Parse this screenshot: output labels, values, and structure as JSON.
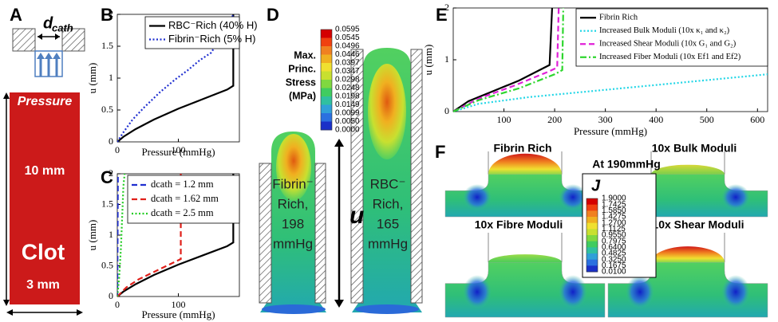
{
  "chart_data": [
    {
      "type": "line",
      "panel_label": "B",
      "xlabel": "Pressure (mmHg)",
      "ylabel": "u (mm)",
      "xlim": [
        0,
        200
      ],
      "ylim": [
        0,
        2
      ],
      "xticks": [
        0,
        100
      ],
      "yticks": [
        0,
        0.5,
        1,
        1.5,
        2
      ],
      "legend": "upper right",
      "series": [
        {
          "name": "RBC⁻Rich (40% H)",
          "color": "#000000",
          "style": "solid",
          "x": [
            0,
            10,
            30,
            60,
            100,
            140,
            180,
            190,
            190
          ],
          "values": [
            0,
            0.08,
            0.2,
            0.35,
            0.52,
            0.67,
            0.82,
            0.88,
            2
          ]
        },
        {
          "name": "Fibrin⁻Rich (5% H)",
          "color": "#1f2fd0",
          "style": "dotted",
          "x": [
            0,
            10,
            25,
            45,
            70,
            95,
            115,
            135,
            154,
            188,
            190
          ],
          "values": [
            0,
            0.15,
            0.35,
            0.55,
            0.78,
            0.98,
            1.12,
            1.28,
            1.4,
            1.95,
            2
          ]
        }
      ]
    },
    {
      "type": "line",
      "panel_label": "C",
      "xlabel": "Pressure (mmHg)",
      "ylabel": "u (mm)",
      "xlim": [
        0,
        200
      ],
      "ylim": [
        0,
        2
      ],
      "xticks": [
        0,
        100
      ],
      "yticks": [
        0,
        0.5,
        1,
        1.5,
        2
      ],
      "legend": "upper right",
      "series": [
        {
          "color": "#000000",
          "style": "solid",
          "x": [
            0,
            10,
            30,
            60,
            100,
            140,
            180,
            190,
            190
          ],
          "values": [
            0,
            0.08,
            0.2,
            0.35,
            0.52,
            0.67,
            0.82,
            0.88,
            2
          ]
        },
        {
          "name": "dcath = 1.2 mm",
          "color": "#1f2fd0",
          "style": "dashed",
          "x": [
            0,
            0.5,
            1
          ],
          "values": [
            0,
            1,
            2
          ]
        },
        {
          "name": "dcath = 1.62 mm",
          "color": "#e0201a",
          "style": "dashed",
          "x": [
            0,
            15,
            35,
            60,
            85,
            104,
            104,
            104
          ],
          "values": [
            0,
            0.15,
            0.28,
            0.4,
            0.52,
            0.61,
            1.35,
            2
          ]
        },
        {
          "name": "dcath = 2.5 mm",
          "color": "#22cc22",
          "style": "dotted",
          "x": [
            0,
            3,
            6,
            8,
            10,
            12
          ],
          "values": [
            0,
            0.3,
            0.8,
            1.3,
            1.8,
            2
          ]
        }
      ]
    },
    {
      "type": "line",
      "panel_label": "E",
      "xlabel": "Pressure (mmHg)",
      "ylabel": "u (mm)",
      "xlim": [
        0,
        620
      ],
      "ylim": [
        0,
        2
      ],
      "xticks": [
        100,
        200,
        300,
        400,
        500,
        600
      ],
      "yticks": [
        0,
        1,
        2
      ],
      "legend": "upper right",
      "series": [
        {
          "name": "Fibrin Rich",
          "color": "#000000",
          "style": "solid",
          "x": [
            0,
            30,
            80,
            130,
            170,
            190,
            195
          ],
          "values": [
            0,
            0.2,
            0.4,
            0.6,
            0.8,
            0.9,
            2
          ]
        },
        {
          "name": "Increased Bulk Moduli (10x κ₁ and κ₂)",
          "color": "#22d6e6",
          "style": "dotted",
          "x": [
            0,
            50,
            150,
            300,
            450,
            620
          ],
          "values": [
            0,
            0.15,
            0.28,
            0.42,
            0.56,
            0.72
          ]
        },
        {
          "name": "Increased Shear Moduli (10x G₁ and G₂)",
          "color": "#e020d8",
          "style": "dashed",
          "x": [
            0,
            50,
            120,
            190,
            205,
            208
          ],
          "values": [
            0,
            0.25,
            0.5,
            0.78,
            0.85,
            2
          ]
        },
        {
          "name": "Increased Fiber Moduli (10x Ef1 and Ef2)",
          "color": "#2ed62e",
          "style": "dashdot",
          "x": [
            0,
            50,
            130,
            200,
            215,
            217
          ],
          "values": [
            0,
            0.22,
            0.45,
            0.72,
            0.8,
            2
          ]
        }
      ]
    }
  ],
  "panel_a": {
    "label": "A",
    "catheter": {
      "symbol": "d",
      "subscript": "cath"
    },
    "pressure": "Pressure",
    "length": "10 mm",
    "clot": "Clot",
    "width": "3 mm"
  },
  "panel_d": {
    "label": "D",
    "colorbar": {
      "title": [
        "Max.",
        "Princ.",
        "Stress",
        "(MPa)"
      ],
      "labels": [
        "0.0595",
        "0.0545",
        "0.0496",
        "0.0446",
        "0.0397",
        "0.0347",
        "0.0298",
        "0.0248",
        "0.0198",
        "0.0149",
        "0.0099",
        "0.0050",
        "0.0000"
      ]
    },
    "clots": [
      {
        "lines": [
          "Fibrin⁻",
          "Rich,",
          "198",
          "mmHg"
        ]
      },
      {
        "lines": [
          "RBC⁻",
          "Rich,",
          "165",
          "mmHg"
        ]
      }
    ],
    "displacement": "u"
  },
  "panel_f": {
    "label": "F",
    "subtitle": "At 190mmHg",
    "colorbar": {
      "title": "J",
      "labels": [
        "1.9000",
        "1.7425",
        "1.5850",
        "1.4275",
        "1.2700",
        "1.1125",
        "0.9550",
        "0.7975",
        "0.6400",
        "0.4825",
        "0.3250",
        "0.1675",
        "0.0100"
      ]
    },
    "cases": [
      "Fibrin Rich",
      "10x Bulk Moduli",
      "10x Fibre Moduli",
      "10x Shear Moduli"
    ]
  }
}
